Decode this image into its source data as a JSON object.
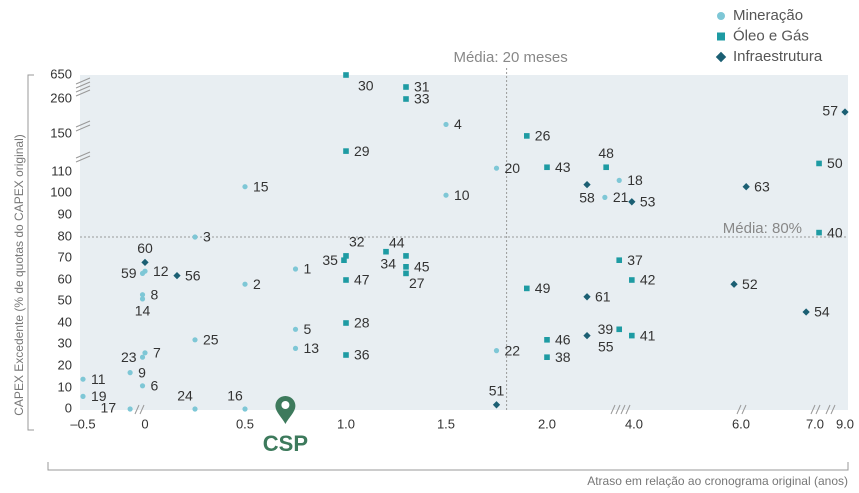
{
  "chart_data": {
    "type": "scatter",
    "x_label": "Atraso em relação ao cronograma original (anos)",
    "y_label": "CAPEX Excedente (% de quotas do CAPEX original)",
    "xlim": [
      -0.5,
      9.0
    ],
    "ylim": [
      0,
      650
    ],
    "xticks": [
      {
        "value": -0.5,
        "label": "–0.5"
      },
      0,
      0.5,
      {
        "value": 1,
        "label": "1.0"
      },
      1.5,
      {
        "value": 2,
        "label": "2.0"
      },
      {
        "value": 4,
        "label": "4.0"
      },
      {
        "value": 6,
        "label": "6.0"
      },
      {
        "value": 7,
        "label": "7.0"
      },
      {
        "value": 9,
        "label": "9.0"
      }
    ],
    "yticks": [
      0,
      10,
      20,
      30,
      40,
      50,
      60,
      70,
      80,
      90,
      100,
      110,
      150,
      260,
      650
    ],
    "legend": "top-right",
    "vline": {
      "x": 1.8,
      "label": "Média: 20 meses"
    },
    "hline": {
      "y": 80,
      "label": "Média: 80%"
    },
    "annotation": {
      "x": 0.7,
      "text": "CSP",
      "color": "#3d7a5c"
    },
    "series": [
      {
        "name": "Mineração",
        "color": "#7ec7d6",
        "marker": "circle",
        "labels": [
          "11",
          "19",
          "17",
          "9",
          "6",
          "23",
          "7",
          "8",
          "14",
          "12",
          "59",
          "3",
          "15",
          "2",
          "25",
          "24",
          "16",
          "1",
          "5",
          "13",
          "4",
          "10",
          "20",
          "22",
          "18",
          "21"
        ],
        "x": [
          -0.5,
          -0.5,
          -0.12,
          -0.12,
          -0.02,
          -0.02,
          0,
          -0.02,
          -0.02,
          0,
          -0.02,
          0.25,
          0.5,
          0.5,
          0.25,
          0.25,
          0.5,
          0.75,
          0.75,
          0.75,
          1.5,
          1.5,
          1.75,
          1.75,
          3.66,
          3.33
        ],
        "values": [
          14,
          6,
          0,
          17,
          11,
          24,
          26,
          53,
          51,
          64,
          63,
          80,
          103,
          58,
          32,
          0,
          0,
          65,
          37,
          28,
          180,
          99,
          114,
          27,
          106,
          98
        ]
      },
      {
        "name": "Óleo e Gás",
        "color": "#1e9ba3",
        "marker": "square",
        "labels": [
          "30",
          "31",
          "33",
          "29",
          "26",
          "43",
          "48",
          "50",
          "40",
          "37",
          "42",
          "49",
          "32",
          "35",
          "47",
          "44",
          "34",
          "45",
          "27",
          "28",
          "36",
          "46",
          "38",
          "39",
          "41"
        ],
        "x": [
          1,
          1.3,
          1.3,
          1,
          1.9,
          2,
          3.36,
          7.27,
          7.27,
          3.66,
          3.95,
          1.9,
          1,
          0.99,
          1,
          1.2,
          1.3,
          1.3,
          1.3,
          1,
          1,
          2,
          2,
          3.66,
          3.95
        ],
        "values": [
          650,
          455,
          260,
          132,
          148,
          115,
          115,
          119,
          82,
          69,
          60,
          56,
          71,
          69,
          60,
          73,
          71,
          66,
          63,
          40,
          25,
          32,
          24,
          37,
          34
        ]
      },
      {
        "name": "Infraestrutura",
        "color": "#1b5f73",
        "marker": "diamond",
        "labels": [
          "57",
          "63",
          "58",
          "53",
          "60",
          "56",
          "52",
          "54",
          "61",
          "55",
          "51"
        ],
        "x": [
          9,
          6.07,
          2.92,
          3.95,
          0,
          0.16,
          5.87,
          6.88,
          2.92,
          2.92,
          1.75
        ],
        "values": [
          219,
          103,
          104,
          96,
          68,
          62,
          58,
          45,
          52,
          34,
          2
        ]
      }
    ]
  }
}
